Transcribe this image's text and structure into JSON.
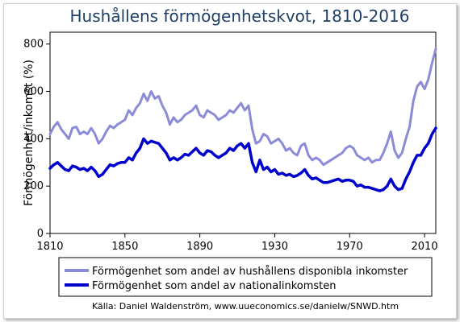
{
  "chart_data": {
    "type": "line",
    "title": "Hushållens förmögenhetskvot, 1810-2016",
    "xlabel": "",
    "ylabel": "Förmögenhet/inkomst (%)",
    "xlim": [
      1810,
      2016
    ],
    "ylim": [
      0,
      850
    ],
    "xticks": [
      1810,
      1850,
      1890,
      1930,
      1970,
      2010
    ],
    "yticks": [
      0,
      200,
      400,
      600,
      800
    ],
    "grid": false,
    "legend": "bottom",
    "source": "Källa: Daniel Waldenström, www.uueconomics.se/danielw/SNWD.htm",
    "series": [
      {
        "name": "Förmögenhet som andel av hushållens disponibla inkomster",
        "color": "#8b8bd8",
        "x": [
          1810,
          1812,
          1814,
          1816,
          1818,
          1820,
          1822,
          1824,
          1826,
          1828,
          1830,
          1832,
          1834,
          1836,
          1838,
          1840,
          1842,
          1844,
          1846,
          1848,
          1850,
          1852,
          1854,
          1856,
          1858,
          1860,
          1862,
          1864,
          1866,
          1868,
          1870,
          1872,
          1874,
          1876,
          1878,
          1880,
          1882,
          1884,
          1886,
          1888,
          1890,
          1892,
          1894,
          1896,
          1898,
          1900,
          1902,
          1904,
          1906,
          1908,
          1910,
          1912,
          1914,
          1916,
          1918,
          1920,
          1922,
          1924,
          1926,
          1928,
          1930,
          1932,
          1934,
          1936,
          1938,
          1940,
          1942,
          1944,
          1946,
          1948,
          1950,
          1952,
          1954,
          1956,
          1958,
          1960,
          1962,
          1964,
          1966,
          1968,
          1970,
          1972,
          1974,
          1976,
          1978,
          1980,
          1982,
          1984,
          1986,
          1988,
          1990,
          1992,
          1994,
          1996,
          1998,
          2000,
          2002,
          2004,
          2006,
          2008,
          2010,
          2012,
          2014,
          2016
        ],
        "values": [
          420,
          450,
          470,
          440,
          420,
          400,
          445,
          450,
          420,
          430,
          420,
          445,
          420,
          380,
          400,
          430,
          455,
          445,
          460,
          470,
          480,
          520,
          500,
          530,
          550,
          590,
          560,
          600,
          570,
          580,
          540,
          510,
          460,
          490,
          470,
          480,
          500,
          510,
          520,
          540,
          500,
          490,
          520,
          510,
          500,
          480,
          490,
          500,
          520,
          510,
          530,
          550,
          520,
          540,
          440,
          380,
          390,
          420,
          410,
          380,
          390,
          400,
          380,
          350,
          360,
          340,
          330,
          370,
          380,
          330,
          310,
          320,
          310,
          290,
          300,
          310,
          320,
          330,
          340,
          360,
          370,
          360,
          330,
          320,
          310,
          320,
          300,
          310,
          310,
          340,
          380,
          430,
          350,
          320,
          340,
          400,
          450,
          560,
          620,
          640,
          610,
          650,
          720,
          780
        ]
      },
      {
        "name": "Förmögenhet som andel av nationalinkomsten",
        "color": "#0000cc",
        "x": [
          1810,
          1812,
          1814,
          1816,
          1818,
          1820,
          1822,
          1824,
          1826,
          1828,
          1830,
          1832,
          1834,
          1836,
          1838,
          1840,
          1842,
          1844,
          1846,
          1848,
          1850,
          1852,
          1854,
          1856,
          1858,
          1860,
          1862,
          1864,
          1866,
          1868,
          1870,
          1872,
          1874,
          1876,
          1878,
          1880,
          1882,
          1884,
          1886,
          1888,
          1890,
          1892,
          1894,
          1896,
          1898,
          1900,
          1902,
          1904,
          1906,
          1908,
          1910,
          1912,
          1914,
          1916,
          1918,
          1920,
          1922,
          1924,
          1926,
          1928,
          1930,
          1932,
          1934,
          1936,
          1938,
          1940,
          1942,
          1944,
          1946,
          1948,
          1950,
          1952,
          1954,
          1956,
          1958,
          1960,
          1962,
          1964,
          1966,
          1968,
          1970,
          1972,
          1974,
          1976,
          1978,
          1980,
          1982,
          1984,
          1986,
          1988,
          1990,
          1992,
          1994,
          1996,
          1998,
          2000,
          2002,
          2004,
          2006,
          2008,
          2010,
          2012,
          2014,
          2016
        ],
        "values": [
          275,
          290,
          300,
          285,
          270,
          265,
          285,
          280,
          270,
          275,
          265,
          280,
          265,
          240,
          250,
          270,
          290,
          285,
          295,
          300,
          300,
          320,
          310,
          340,
          360,
          400,
          380,
          390,
          385,
          380,
          360,
          340,
          310,
          320,
          310,
          320,
          335,
          330,
          345,
          360,
          340,
          330,
          350,
          345,
          330,
          320,
          330,
          340,
          360,
          350,
          370,
          380,
          360,
          380,
          300,
          260,
          310,
          270,
          280,
          260,
          270,
          250,
          255,
          245,
          250,
          240,
          245,
          255,
          270,
          245,
          230,
          235,
          225,
          215,
          215,
          220,
          225,
          230,
          220,
          225,
          225,
          220,
          200,
          205,
          195,
          195,
          190,
          185,
          180,
          185,
          200,
          230,
          200,
          185,
          190,
          230,
          260,
          300,
          330,
          330,
          360,
          380,
          420,
          445
        ]
      }
    ]
  }
}
